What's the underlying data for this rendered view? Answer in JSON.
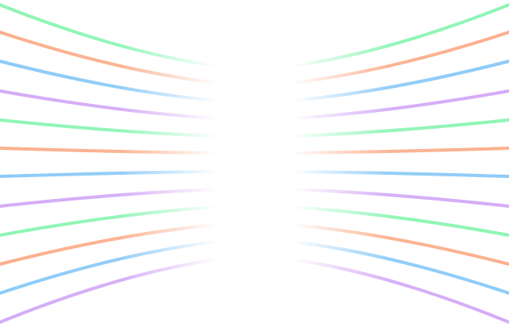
{
  "background_color": "#ffffff",
  "stripe_palette": [
    "#8ef5b4",
    "#fbb08e",
    "#8ecbf8",
    "#d4acf7"
  ]
}
